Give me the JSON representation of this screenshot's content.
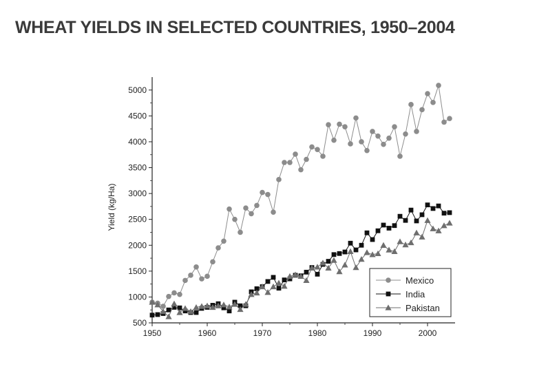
{
  "page": {
    "title": "WHEAT YIELDS IN SELECTED COUNTRIES, 1950–2004"
  },
  "chart_data": {
    "type": "line",
    "title": "",
    "xlabel": "",
    "ylabel": "Yield (kg/Ha)",
    "xlim": [
      1950,
      2005
    ],
    "ylim": [
      500,
      5250
    ],
    "x_ticks": [
      1950,
      1960,
      1970,
      1980,
      1990,
      2000
    ],
    "y_ticks": [
      500,
      1000,
      1500,
      2000,
      2500,
      3000,
      3500,
      4000,
      4500,
      5000
    ],
    "grid": false,
    "legend_position": "bottom-right",
    "x": [
      1950,
      1951,
      1952,
      1953,
      1954,
      1955,
      1956,
      1957,
      1958,
      1959,
      1960,
      1961,
      1962,
      1963,
      1964,
      1965,
      1966,
      1967,
      1968,
      1969,
      1970,
      1971,
      1972,
      1973,
      1974,
      1975,
      1976,
      1977,
      1978,
      1979,
      1980,
      1981,
      1982,
      1983,
      1984,
      1985,
      1986,
      1987,
      1988,
      1989,
      1990,
      1991,
      1992,
      1993,
      1994,
      1995,
      1996,
      1997,
      1998,
      1999,
      2000,
      2001,
      2002,
      2003,
      2004
    ],
    "series": [
      {
        "name": "Mexico",
        "marker": "circle",
        "color": "#8c8c8c",
        "values": [
          900,
          880,
          820,
          1010,
          1080,
          1050,
          1320,
          1420,
          1580,
          1350,
          1400,
          1680,
          1950,
          2080,
          2700,
          2500,
          2250,
          2720,
          2610,
          2770,
          3020,
          2980,
          2640,
          3270,
          3600,
          3600,
          3760,
          3460,
          3660,
          3900,
          3850,
          3720,
          4330,
          4030,
          4340,
          4290,
          3960,
          4460,
          4000,
          3830,
          4200,
          4110,
          3950,
          4070,
          4290,
          3720,
          4150,
          4720,
          4200,
          4620,
          4930,
          4760,
          5090,
          4380,
          4450
        ]
      },
      {
        "name": "India",
        "marker": "square",
        "color": "#111111",
        "values": [
          650,
          660,
          680,
          750,
          800,
          790,
          730,
          700,
          700,
          780,
          800,
          840,
          870,
          790,
          730,
          900,
          830,
          830,
          1100,
          1160,
          1200,
          1300,
          1380,
          1170,
          1330,
          1350,
          1420,
          1410,
          1480,
          1570,
          1440,
          1630,
          1690,
          1820,
          1840,
          1870,
          2040,
          1910,
          2000,
          2240,
          2110,
          2280,
          2390,
          2330,
          2380,
          2560,
          2480,
          2680,
          2470,
          2590,
          2780,
          2710,
          2760,
          2620,
          2630
        ]
      },
      {
        "name": "Pakistan",
        "marker": "triangle",
        "color": "#6e6e6e",
        "values": [
          900,
          850,
          720,
          620,
          870,
          700,
          780,
          720,
          800,
          820,
          830,
          800,
          830,
          850,
          810,
          860,
          760,
          860,
          1050,
          1080,
          1200,
          1090,
          1200,
          1270,
          1210,
          1400,
          1430,
          1400,
          1320,
          1560,
          1580,
          1660,
          1560,
          1710,
          1490,
          1620,
          1880,
          1570,
          1730,
          1860,
          1820,
          1840,
          2000,
          1910,
          1880,
          2070,
          2010,
          2050,
          2240,
          2160,
          2480,
          2320,
          2280,
          2380,
          2430
        ]
      }
    ]
  }
}
